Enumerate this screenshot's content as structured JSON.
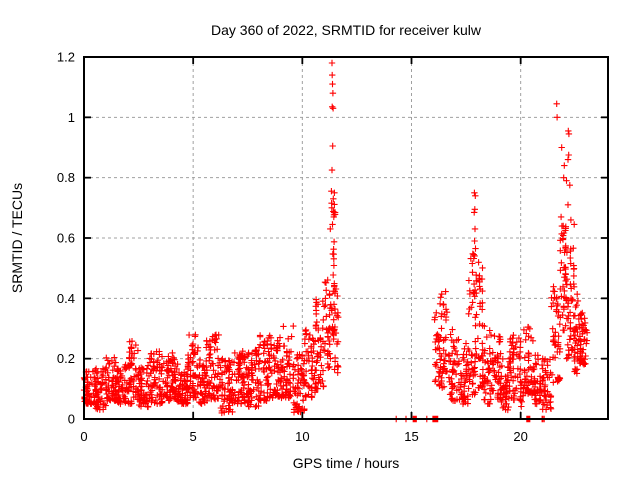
{
  "window": {
    "description": "gnuplot-style scatter chart image, white background"
  },
  "chart_data": {
    "type": "scatter",
    "title": "Day 360 of 2022, SRMTID for receiver kulw",
    "xlabel": "GPS time / hours",
    "ylabel": "SRMTID / TECUs",
    "xlim": [
      0,
      24
    ],
    "ylim": [
      0,
      1.2
    ],
    "xticks": [
      0,
      5,
      10,
      15,
      20
    ],
    "xtick_labels": [
      "0",
      "5",
      "10",
      "15",
      "20"
    ],
    "yticks": [
      0,
      0.2,
      0.4,
      0.6,
      0.8,
      1.0,
      1.2
    ],
    "ytick_labels": [
      "0",
      "0.2",
      "0.4",
      "0.6",
      "0.8",
      "1",
      "1.2"
    ],
    "grid": "dashed",
    "legend": "none",
    "marker": "plus",
    "marker_color": "#ff0000",
    "series_name": "SRMTID",
    "band_segments_comment": "dense scatter band envelope read off the plot: [x_start_hours, x_end_hours, y_min_TECUs, y_max_TECUs, approx_point_count]; data gap ~11.7h-16.0h",
    "band_segments": [
      [
        0.0,
        0.5,
        0.05,
        0.16,
        55
      ],
      [
        0.5,
        1.0,
        0.03,
        0.17,
        55
      ],
      [
        1.0,
        1.5,
        0.06,
        0.21,
        55
      ],
      [
        1.5,
        2.0,
        0.05,
        0.18,
        55
      ],
      [
        2.0,
        2.5,
        0.05,
        0.26,
        55
      ],
      [
        2.5,
        3.0,
        0.04,
        0.18,
        55
      ],
      [
        3.0,
        3.6,
        0.05,
        0.23,
        65
      ],
      [
        3.6,
        4.3,
        0.06,
        0.22,
        75
      ],
      [
        4.3,
        4.75,
        0.05,
        0.16,
        50
      ],
      [
        4.75,
        5.25,
        0.07,
        0.28,
        55
      ],
      [
        5.25,
        5.6,
        0.05,
        0.2,
        40
      ],
      [
        5.6,
        6.2,
        0.06,
        0.28,
        65
      ],
      [
        6.2,
        6.8,
        0.02,
        0.2,
        65
      ],
      [
        6.8,
        7.4,
        0.05,
        0.24,
        65
      ],
      [
        7.4,
        8.0,
        0.04,
        0.23,
        65
      ],
      [
        8.0,
        8.6,
        0.06,
        0.28,
        65
      ],
      [
        8.6,
        9.1,
        0.07,
        0.27,
        55
      ],
      [
        9.1,
        9.6,
        0.07,
        0.31,
        55
      ],
      [
        9.6,
        10.1,
        0.02,
        0.22,
        55
      ],
      [
        10.1,
        10.6,
        0.07,
        0.3,
        50
      ],
      [
        10.6,
        11.0,
        0.1,
        0.4,
        45
      ],
      [
        11.0,
        11.3,
        0.15,
        0.48,
        35
      ],
      [
        11.28,
        11.5,
        0.25,
        0.72,
        32
      ],
      [
        11.45,
        11.65,
        0.12,
        0.45,
        20
      ],
      [
        16.05,
        16.3,
        0.1,
        0.36,
        25
      ],
      [
        16.3,
        16.7,
        0.1,
        0.45,
        40
      ],
      [
        16.7,
        17.2,
        0.06,
        0.3,
        50
      ],
      [
        17.2,
        17.6,
        0.05,
        0.26,
        40
      ],
      [
        17.6,
        18.0,
        0.08,
        0.55,
        52
      ],
      [
        18.0,
        18.3,
        0.1,
        0.52,
        35
      ],
      [
        18.3,
        18.6,
        0.05,
        0.33,
        30
      ],
      [
        18.6,
        19.1,
        0.06,
        0.28,
        50
      ],
      [
        19.1,
        19.5,
        0.03,
        0.2,
        40
      ],
      [
        19.5,
        20.0,
        0.06,
        0.28,
        50
      ],
      [
        20.0,
        20.12,
        0.04,
        0.15,
        8
      ],
      [
        20.1,
        20.6,
        0.08,
        0.32,
        50
      ],
      [
        20.6,
        21.0,
        0.05,
        0.22,
        38
      ],
      [
        21.0,
        21.4,
        0.03,
        0.2,
        40
      ],
      [
        21.4,
        21.8,
        0.12,
        0.45,
        45
      ],
      [
        21.8,
        22.1,
        0.28,
        0.65,
        40
      ],
      [
        22.1,
        22.45,
        0.2,
        0.6,
        45
      ],
      [
        22.45,
        22.7,
        0.15,
        0.42,
        30
      ],
      [
        22.7,
        23.05,
        0.18,
        0.36,
        48
      ]
    ],
    "outlier_points_comment": "individually visible high points of the three spikes [x_hours, y_TECUs]",
    "outlier_points": [
      [
        11.36,
        1.18
      ],
      [
        11.37,
        1.14
      ],
      [
        11.38,
        1.11
      ],
      [
        11.4,
        1.08
      ],
      [
        11.37,
        1.035
      ],
      [
        11.41,
        1.03
      ],
      [
        11.39,
        0.905
      ],
      [
        11.36,
        0.825
      ],
      [
        11.33,
        0.755
      ],
      [
        11.42,
        0.73
      ],
      [
        11.35,
        0.7
      ],
      [
        11.44,
        0.67
      ],
      [
        11.38,
        0.645
      ],
      [
        11.47,
        0.75
      ],
      [
        17.88,
        0.75
      ],
      [
        17.92,
        0.74
      ],
      [
        17.9,
        0.695
      ],
      [
        17.87,
        0.685
      ],
      [
        17.91,
        0.63
      ],
      [
        17.89,
        0.59
      ],
      [
        17.93,
        0.565
      ],
      [
        17.85,
        0.545
      ],
      [
        21.65,
        1.045
      ],
      [
        21.67,
        1.0
      ],
      [
        22.18,
        0.955
      ],
      [
        22.21,
        0.945
      ],
      [
        21.88,
        0.9
      ],
      [
        22.2,
        0.875
      ],
      [
        22.17,
        0.86
      ],
      [
        22.0,
        0.84
      ],
      [
        21.97,
        0.8
      ],
      [
        22.1,
        0.79
      ],
      [
        22.25,
        0.775
      ],
      [
        22.17,
        0.71
      ],
      [
        21.85,
        0.67
      ],
      [
        22.3,
        0.66
      ],
      [
        22.45,
        0.645
      ],
      [
        21.95,
        0.64
      ],
      [
        22.05,
        0.625
      ]
    ],
    "zero_points_comment": "marks sitting on the y=0 axis during the data gap [x_hours]",
    "zero_points": [
      14.3,
      14.75,
      15.08,
      15.1,
      15.12,
      15.14,
      15.16,
      15.18,
      15.2,
      15.22,
      15.7,
      15.98,
      16.0,
      16.02,
      16.04,
      16.06,
      16.08,
      16.1,
      16.12,
      16.14,
      16.16,
      16.18,
      16.2,
      20.28,
      20.3,
      20.32,
      20.34,
      20.36,
      20.38,
      20.4,
      20.42,
      20.98,
      21.0,
      21.06,
      21.08
    ]
  }
}
